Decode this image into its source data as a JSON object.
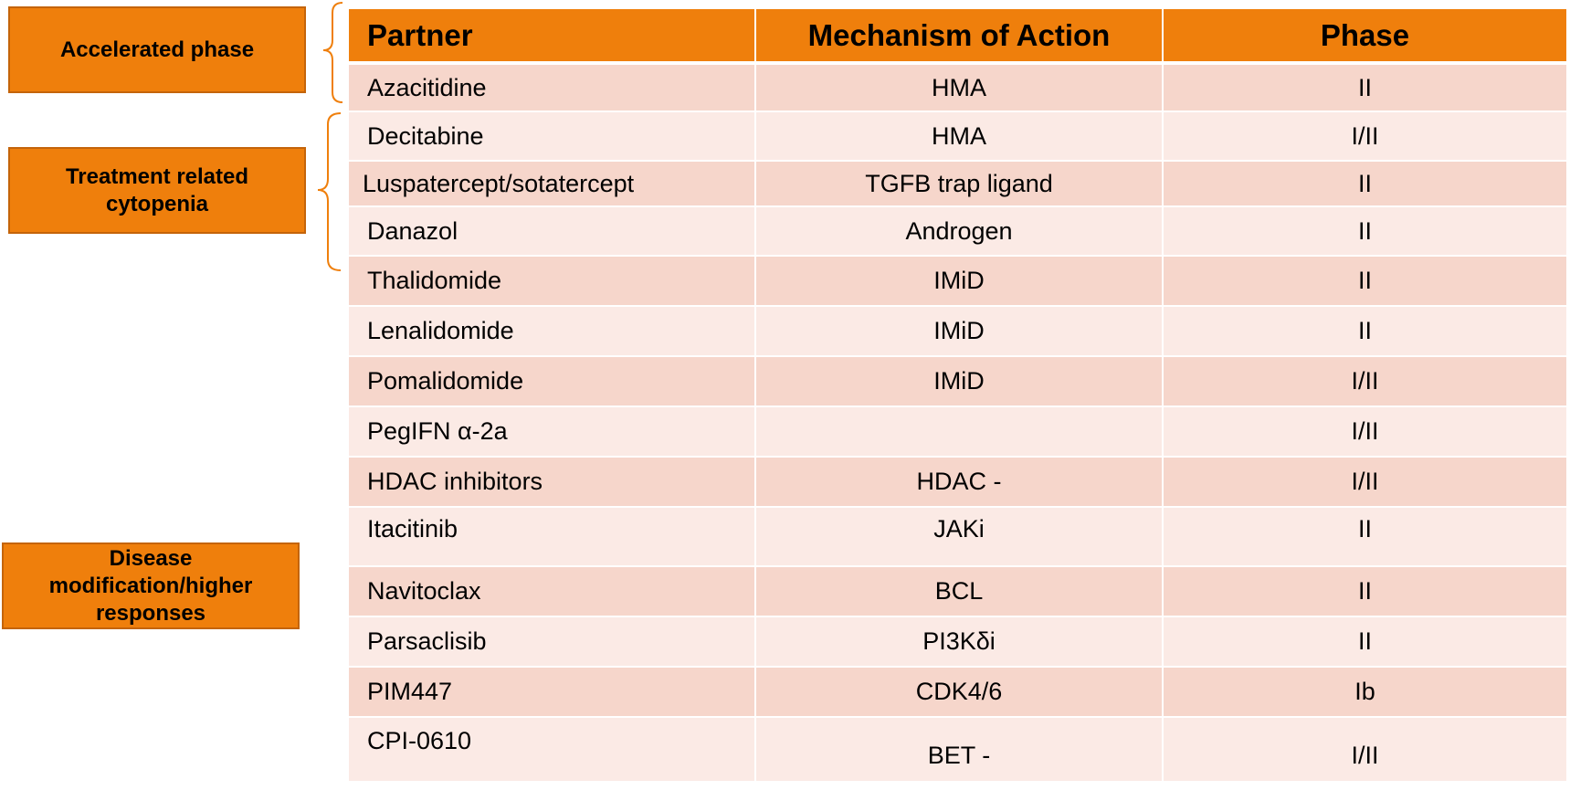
{
  "category_labels": {
    "accelerated_phase": "Accelerated phase",
    "treatment_related_cytopenia": "Treatment related cytopenia",
    "disease_modification": "Disease modification/higher responses"
  },
  "table": {
    "headers": {
      "partner": "Partner",
      "mechanism": "Mechanism of Action",
      "phase": "Phase"
    },
    "rows": [
      {
        "partner": "Azacitidine",
        "mechanism": "HMA",
        "phase": "II"
      },
      {
        "partner": "Decitabine",
        "mechanism": "HMA",
        "phase": "I/II"
      },
      {
        "partner": "Luspatercept/sotatercept",
        "mechanism": "TGFB trap ligand",
        "phase": "II"
      },
      {
        "partner": "Danazol",
        "mechanism": "Androgen",
        "phase": "II"
      },
      {
        "partner": "Thalidomide",
        "mechanism": "IMiD",
        "phase": "II"
      },
      {
        "partner": "Lenalidomide",
        "mechanism": "IMiD",
        "phase": "II"
      },
      {
        "partner": "Pomalidomide",
        "mechanism": "IMiD",
        "phase": "I/II"
      },
      {
        "partner": "PegIFN α-2a",
        "mechanism": "",
        "phase": "I/II"
      },
      {
        "partner": "HDAC inhibitors",
        "mechanism": "HDAC -",
        "phase": "I/II"
      },
      {
        "partner": "Itacitinib",
        "mechanism": "JAKi",
        "phase": "II"
      },
      {
        "partner": "Navitoclax",
        "mechanism": "BCL",
        "phase": "II"
      },
      {
        "partner": "Parsaclisib",
        "mechanism": "PI3Kδi",
        "phase": "II"
      },
      {
        "partner": "PIM447",
        "mechanism": "CDK4/6",
        "phase": "Ib"
      },
      {
        "partner": "CPI-0610",
        "mechanism": "BET -",
        "phase": "I/II"
      }
    ]
  },
  "colors": {
    "accent_orange": "#ef7f0c",
    "row_dark": "#f6d6cb",
    "row_light": "#fbeae5"
  }
}
